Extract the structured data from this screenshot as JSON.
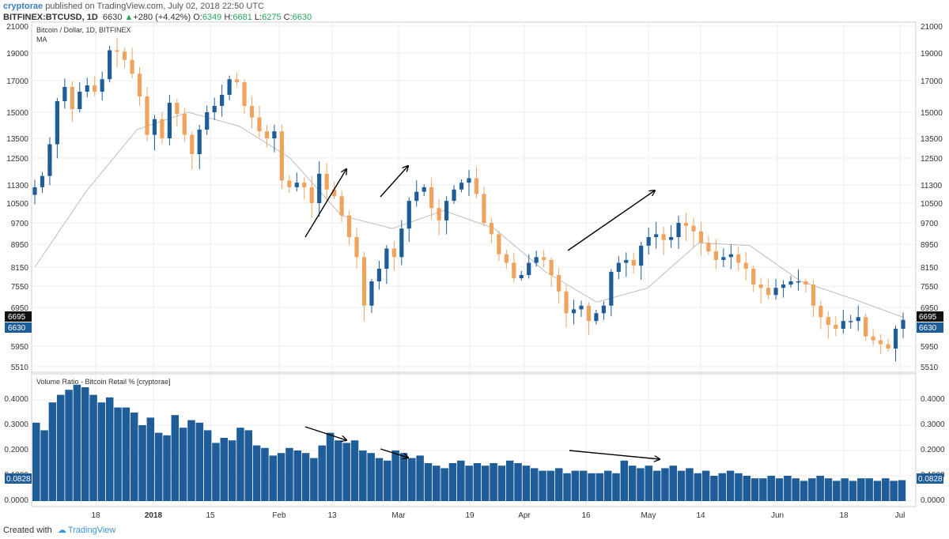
{
  "header": {
    "author": "cryptorae",
    "published": "published on TradingView.com, July 02, 2018 22:50 UTC",
    "symbol": "BITFINEX:BTCUSD, 1D",
    "last": "6630",
    "change_arrow": "▲",
    "change": "+280 (+4.42%)",
    "o_label": "O:",
    "o_value": "6349",
    "h_label": "H:",
    "h_value": "6681",
    "l_label": "L:",
    "l_value": "6275",
    "c_label": "C:",
    "c_value": "6630"
  },
  "price_pane": {
    "title": "Bitcoin / Dollar, 1D, BITFINEX",
    "indicator": "MA",
    "y_ticks": [
      "21000",
      "19000",
      "17000",
      "15000",
      "13500",
      "12500",
      "11300",
      "10500",
      "9700",
      "8950",
      "8150",
      "7550",
      "6950",
      "5950",
      "5510"
    ],
    "ma_tag": "6695",
    "price_tag": "6630"
  },
  "volume_pane": {
    "title": "Volume Ratio - Bitcoin Retail % [cryptorae]",
    "y_ticks": [
      "0.4000",
      "0.3000",
      "0.2000",
      "0.1000",
      "0.0000"
    ],
    "value_tag": "0.0828"
  },
  "x_axis": {
    "labels": [
      "18",
      "2018",
      "15",
      "Feb",
      "13",
      "Mar",
      "19",
      "Apr",
      "16",
      "May",
      "14",
      "Jun",
      "18",
      "Jul"
    ]
  },
  "footer": {
    "created_with": "Created with",
    "brand": "TradingView"
  },
  "colors": {
    "up": "#1f5d99",
    "down": "#f0a35e",
    "ma": "#bdbdbd",
    "volume": "#1f5d99",
    "grid": "#eeeeee"
  },
  "chart_data": [
    {
      "type": "candlestick",
      "title": "Bitcoin / Dollar, 1D, BITFINEX",
      "x_range": [
        "2017-12-05",
        "2018-07-02"
      ],
      "candles_close_approx": [
        11200,
        11700,
        13200,
        15700,
        16600,
        15200,
        16300,
        16700,
        16300,
        17100,
        19200,
        19100,
        18500,
        17500,
        16000,
        13700,
        14600,
        13500,
        15600,
        14900,
        13700,
        12700,
        14000,
        15000,
        15400,
        16100,
        17100,
        16900,
        15400,
        14700,
        13900,
        13500,
        13900,
        11500,
        11200,
        11400,
        11200,
        10500,
        11800,
        11100,
        10800,
        10000,
        9200,
        8500,
        7000,
        7700,
        8100,
        8800,
        8500,
        9500,
        10600,
        11000,
        11200,
        10300,
        9800,
        10600,
        11100,
        11400,
        11600,
        10900,
        9700,
        9300,
        8600,
        8300,
        7800,
        7900,
        8300,
        8500,
        8400,
        7900,
        7400,
        6800,
        6900,
        7000,
        6600,
        6800,
        7000,
        8000,
        8300,
        8400,
        8200,
        8900,
        9200,
        9300,
        9100,
        9200,
        9700,
        9600,
        9400,
        9000,
        8700,
        8400,
        8500,
        8600,
        8300,
        8100,
        7600,
        7500,
        7300,
        7500,
        7600,
        7700,
        7700,
        7600,
        7000,
        6700,
        6500,
        6400,
        6600,
        6600,
        6700,
        6200,
        6100,
        6000,
        5900,
        6400,
        6630
      ],
      "ma_approx_points": [
        [
          0,
          8150
        ],
        [
          10,
          11000
        ],
        [
          20,
          14000
        ],
        [
          30,
          15000
        ],
        [
          40,
          14200
        ],
        [
          50,
          12500
        ],
        [
          60,
          10000
        ],
        [
          70,
          9500
        ],
        [
          80,
          10200
        ],
        [
          90,
          9500
        ],
        [
          100,
          8000
        ],
        [
          110,
          7100
        ],
        [
          120,
          7500
        ],
        [
          130,
          9000
        ],
        [
          140,
          8900
        ],
        [
          150,
          7700
        ],
        [
          160,
          7200
        ],
        [
          170,
          6695
        ]
      ],
      "ylim": [
        5300,
        21500
      ],
      "annotations": [
        "up-arrow Feb",
        "up-arrow Mar",
        "up-arrow Apr-May"
      ]
    },
    {
      "type": "bar",
      "title": "Volume Ratio - Bitcoin Retail % [cryptorae]",
      "values_approx": [
        0.31,
        0.28,
        0.39,
        0.42,
        0.44,
        0.46,
        0.45,
        0.42,
        0.39,
        0.41,
        0.37,
        0.37,
        0.35,
        0.3,
        0.33,
        0.27,
        0.26,
        0.34,
        0.29,
        0.32,
        0.31,
        0.28,
        0.23,
        0.25,
        0.24,
        0.29,
        0.28,
        0.22,
        0.21,
        0.18,
        0.19,
        0.21,
        0.2,
        0.19,
        0.17,
        0.22,
        0.27,
        0.24,
        0.23,
        0.24,
        0.2,
        0.19,
        0.17,
        0.16,
        0.2,
        0.19,
        0.17,
        0.18,
        0.15,
        0.14,
        0.13,
        0.15,
        0.16,
        0.14,
        0.15,
        0.14,
        0.15,
        0.14,
        0.16,
        0.15,
        0.14,
        0.13,
        0.12,
        0.12,
        0.13,
        0.11,
        0.12,
        0.12,
        0.11,
        0.11,
        0.12,
        0.11,
        0.16,
        0.14,
        0.13,
        0.14,
        0.12,
        0.13,
        0.14,
        0.12,
        0.13,
        0.11,
        0.12,
        0.1,
        0.11,
        0.12,
        0.11,
        0.1,
        0.09,
        0.09,
        0.1,
        0.09,
        0.1,
        0.09,
        0.08,
        0.09,
        0.1,
        0.09,
        0.08,
        0.09,
        0.08,
        0.09,
        0.09,
        0.08,
        0.09,
        0.08,
        0.0828
      ],
      "ylim": [
        0,
        0.45
      ],
      "annotations": [
        "down-arrow Feb",
        "down-arrow Mar",
        "down-arrow Apr-May"
      ]
    }
  ]
}
